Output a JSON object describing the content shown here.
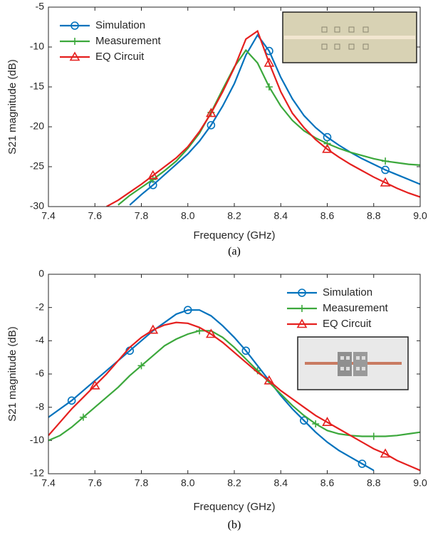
{
  "chart_data": [
    {
      "type": "line",
      "caption": "(a)",
      "x_label": "Frequency (GHz)",
      "y_label": "S21 magnitude (dB)",
      "xlim": [
        7.4,
        9.0
      ],
      "ylim": [
        -30,
        -5
      ],
      "xticks": [
        7.4,
        7.6,
        7.8,
        {
          "value": 8,
          "label": "8.0"
        },
        8.2,
        8.4,
        8.6,
        8.8,
        {
          "value": 9,
          "label": "9.0"
        }
      ],
      "yticks": [
        -30,
        -25,
        -20,
        -15,
        -10,
        -5
      ],
      "legend": "top-left",
      "x": [
        7.65,
        7.7,
        7.75,
        7.8,
        7.85,
        7.9,
        7.95,
        8.0,
        8.05,
        8.1,
        8.15,
        8.2,
        8.25,
        8.3,
        8.35,
        8.4,
        8.45,
        8.5,
        8.55,
        8.6,
        8.65,
        8.7,
        8.75,
        8.8,
        8.85,
        8.9,
        8.95,
        9.0
      ],
      "series": [
        {
          "name": "Simulation",
          "color": "#0072bd",
          "marker": "o",
          "values": [
            null,
            null,
            -29.8,
            -28.5,
            -27.3,
            -26,
            -24.7,
            -23.4,
            -21.8,
            -19.8,
            -17.4,
            -14.6,
            -11,
            -8.5,
            -10.5,
            -13.8,
            -16.5,
            -18.6,
            -20.1,
            -21.3,
            -22.3,
            -23.2,
            -24,
            -24.7,
            -25.4,
            -26,
            -26.6,
            -27.2
          ]
        },
        {
          "name": "Measurement",
          "color": "#3ca83c",
          "marker": "+",
          "values": [
            null,
            -29.8,
            -28.6,
            -27.6,
            -26.6,
            -25.5,
            -24.3,
            -22.7,
            -20.8,
            -18.2,
            -15.3,
            -12.5,
            -10.4,
            -12,
            -15,
            -17.4,
            -19.2,
            -20.5,
            -21.4,
            -22.1,
            -22.7,
            -23.2,
            -23.6,
            -24,
            -24.3,
            -24.5,
            -24.7,
            -24.8
          ]
        },
        {
          "name": "EQ Circuit",
          "color": "#e5201f",
          "marker": "^",
          "values": [
            -30,
            -29.2,
            -28.2,
            -27.2,
            -26.1,
            -25,
            -23.9,
            -22.5,
            -20.6,
            -18.3,
            -15.6,
            -12.6,
            -9,
            -8,
            -12,
            -15.6,
            -18.3,
            -20.1,
            -21.6,
            -22.8,
            -23.8,
            -24.7,
            -25.5,
            -26.3,
            -27,
            -27.7,
            -28.3,
            -28.8
          ]
        }
      ]
    },
    {
      "type": "line",
      "caption": "(b)",
      "x_label": "Frequency (GHz)",
      "y_label": "S21 magnitude (dB)",
      "xlim": [
        7.4,
        9.0
      ],
      "ylim": [
        -12,
        0
      ],
      "xticks": [
        7.4,
        7.6,
        7.8,
        {
          "value": 8,
          "label": "8.0"
        },
        8.2,
        8.4,
        8.6,
        8.8,
        {
          "value": 9,
          "label": "9.0"
        }
      ],
      "yticks": [
        -12,
        -10,
        -8,
        -6,
        -4,
        -2,
        0
      ],
      "legend": "top-right",
      "x": [
        7.4,
        7.45,
        7.5,
        7.55,
        7.6,
        7.65,
        7.7,
        7.75,
        7.8,
        7.85,
        7.9,
        7.95,
        8.0,
        8.05,
        8.1,
        8.15,
        8.2,
        8.25,
        8.3,
        8.35,
        8.4,
        8.45,
        8.5,
        8.55,
        8.6,
        8.65,
        8.7,
        8.75,
        8.8,
        8.85,
        8.9,
        8.95,
        9.0
      ],
      "series": [
        {
          "name": "Simulation",
          "color": "#0072bd",
          "marker": "o",
          "values": [
            -8.6,
            -8.1,
            -7.6,
            -7,
            -6.4,
            -5.8,
            -5.2,
            -4.6,
            -4,
            -3.4,
            -2.9,
            -2.4,
            -2.15,
            -2.15,
            -2.5,
            -3.1,
            -3.8,
            -4.6,
            -5.5,
            -6.4,
            -7.3,
            -8.1,
            -8.8,
            -9.5,
            -10.1,
            -10.6,
            -11,
            -11.4,
            -11.8,
            null,
            null,
            null,
            null
          ]
        },
        {
          "name": "Measurement",
          "color": "#3ca83c",
          "marker": "+",
          "values": [
            -10,
            -9.7,
            -9.2,
            -8.6,
            -8,
            -7.4,
            -6.8,
            -6.1,
            -5.5,
            -4.9,
            -4.3,
            -3.9,
            -3.6,
            -3.4,
            -3.4,
            -3.8,
            -4.4,
            -5.1,
            -5.8,
            -6.5,
            -7.2,
            -7.9,
            -8.5,
            -9,
            -9.4,
            -9.6,
            -9.7,
            -9.75,
            -9.75,
            -9.75,
            -9.7,
            -9.6,
            -9.5
          ]
        },
        {
          "name": "EQ Circuit",
          "color": "#e5201f",
          "marker": "^",
          "values": [
            -9.7,
            -8.9,
            -8.1,
            -7.4,
            -6.7,
            -6,
            -5.2,
            -4.4,
            -3.8,
            -3.35,
            -3.05,
            -2.9,
            -2.95,
            -3.2,
            -3.6,
            -4.1,
            -4.7,
            -5.3,
            -5.9,
            -6.4,
            -7,
            -7.5,
            -8,
            -8.5,
            -8.9,
            -9.3,
            -9.7,
            -10.1,
            -10.5,
            -10.8,
            -11.2,
            -11.5,
            -11.8
          ]
        }
      ]
    }
  ]
}
